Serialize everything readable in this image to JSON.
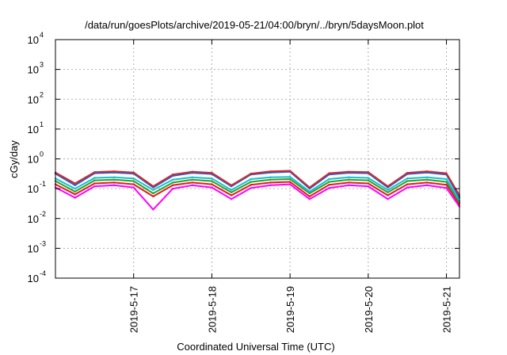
{
  "chart_data": {
    "type": "line",
    "title": "/data/run/goesPlots/archive/2019-05-21/04:00/bryn/../bryn/5daysMoon.plot",
    "xlabel": "Coordinated Universal Time (UTC)",
    "ylabel": "cGy/day",
    "yscale": "log",
    "ylim": [
      0.0001,
      10000
    ],
    "xlim": [
      "2019-05-16 00:00",
      "2019-05-21 04:00"
    ],
    "grid": true,
    "y_ticks": [
      {
        "base": "10",
        "exp": "-4"
      },
      {
        "base": "10",
        "exp": "-3"
      },
      {
        "base": "10",
        "exp": "-2"
      },
      {
        "base": "10",
        "exp": "-1"
      },
      {
        "base": "10",
        "exp": "0"
      },
      {
        "base": "10",
        "exp": "1"
      },
      {
        "base": "10",
        "exp": "2"
      },
      {
        "base": "10",
        "exp": "3"
      },
      {
        "base": "10",
        "exp": "4"
      }
    ],
    "x_ticks": [
      {
        "label": "2019-5-17",
        "t": "2019-05-17 00:00"
      },
      {
        "label": "2019-5-18",
        "t": "2019-05-18 00:00"
      },
      {
        "label": "2019-5-19",
        "t": "2019-05-19 00:00"
      },
      {
        "label": "2019-5-20",
        "t": "2019-05-20 00:00"
      },
      {
        "label": "2019-5-21",
        "t": "2019-05-21 00:00"
      }
    ],
    "series": [
      {
        "color": "#d62728",
        "x": [
          "2019-05-16 00:00",
          "2019-05-16 06:00",
          "2019-05-16 12:00",
          "2019-05-16 18:00",
          "2019-05-17 00:00",
          "2019-05-17 06:00",
          "2019-05-17 12:00",
          "2019-05-17 18:00",
          "2019-05-18 00:00",
          "2019-05-18 06:00",
          "2019-05-18 12:00",
          "2019-05-18 18:00",
          "2019-05-19 00:00",
          "2019-05-19 06:00",
          "2019-05-19 12:00",
          "2019-05-19 18:00",
          "2019-05-20 00:00",
          "2019-05-20 06:00",
          "2019-05-20 12:00",
          "2019-05-20 18:00",
          "2019-05-21 00:00",
          "2019-05-21 04:00"
        ],
        "values": [
          0.35,
          0.15,
          0.36,
          0.38,
          0.35,
          0.12,
          0.3,
          0.37,
          0.34,
          0.13,
          0.32,
          0.38,
          0.4,
          0.11,
          0.33,
          0.37,
          0.36,
          0.12,
          0.34,
          0.38,
          0.33,
          0.06
        ]
      },
      {
        "color": "#1f5fd6",
        "x": [
          "2019-05-16 00:00",
          "2019-05-16 06:00",
          "2019-05-16 12:00",
          "2019-05-16 18:00",
          "2019-05-17 00:00",
          "2019-05-17 06:00",
          "2019-05-17 12:00",
          "2019-05-17 18:00",
          "2019-05-18 00:00",
          "2019-05-18 06:00",
          "2019-05-18 12:00",
          "2019-05-18 18:00",
          "2019-05-19 00:00",
          "2019-05-19 06:00",
          "2019-05-19 12:00",
          "2019-05-19 18:00",
          "2019-05-20 00:00",
          "2019-05-20 06:00",
          "2019-05-20 12:00",
          "2019-05-20 18:00",
          "2019-05-21 00:00",
          "2019-05-21 04:00"
        ],
        "values": [
          0.32,
          0.13,
          0.33,
          0.35,
          0.32,
          0.11,
          0.27,
          0.34,
          0.31,
          0.12,
          0.3,
          0.35,
          0.37,
          0.1,
          0.3,
          0.34,
          0.33,
          0.11,
          0.31,
          0.35,
          0.3,
          0.05
        ]
      },
      {
        "color": "#17becf",
        "x": [
          "2019-05-16 00:00",
          "2019-05-16 06:00",
          "2019-05-16 12:00",
          "2019-05-16 18:00",
          "2019-05-17 00:00",
          "2019-05-17 06:00",
          "2019-05-17 12:00",
          "2019-05-17 18:00",
          "2019-05-18 00:00",
          "2019-05-18 06:00",
          "2019-05-18 12:00",
          "2019-05-18 18:00",
          "2019-05-19 00:00",
          "2019-05-19 06:00",
          "2019-05-19 12:00",
          "2019-05-19 18:00",
          "2019-05-20 00:00",
          "2019-05-20 06:00",
          "2019-05-20 12:00",
          "2019-05-20 18:00",
          "2019-05-21 00:00",
          "2019-05-21 04:00"
        ],
        "values": [
          0.22,
          0.1,
          0.23,
          0.24,
          0.22,
          0.09,
          0.2,
          0.24,
          0.22,
          0.09,
          0.21,
          0.24,
          0.25,
          0.08,
          0.21,
          0.24,
          0.23,
          0.09,
          0.22,
          0.24,
          0.21,
          0.04
        ]
      },
      {
        "color": "#2ca02c",
        "x": [
          "2019-05-16 00:00",
          "2019-05-16 06:00",
          "2019-05-16 12:00",
          "2019-05-16 18:00",
          "2019-05-17 00:00",
          "2019-05-17 06:00",
          "2019-05-17 12:00",
          "2019-05-17 18:00",
          "2019-05-18 00:00",
          "2019-05-18 06:00",
          "2019-05-18 12:00",
          "2019-05-18 18:00",
          "2019-05-19 00:00",
          "2019-05-19 06:00",
          "2019-05-19 12:00",
          "2019-05-19 18:00",
          "2019-05-20 00:00",
          "2019-05-20 06:00",
          "2019-05-20 12:00",
          "2019-05-20 18:00",
          "2019-05-21 00:00",
          "2019-05-21 04:00"
        ],
        "values": [
          0.18,
          0.08,
          0.19,
          0.2,
          0.18,
          0.07,
          0.16,
          0.2,
          0.18,
          0.075,
          0.17,
          0.2,
          0.21,
          0.07,
          0.17,
          0.2,
          0.19,
          0.075,
          0.18,
          0.2,
          0.17,
          0.035
        ]
      },
      {
        "color": "#e31a1c",
        "x": [
          "2019-05-16 00:00",
          "2019-05-16 06:00",
          "2019-05-16 12:00",
          "2019-05-16 18:00",
          "2019-05-17 00:00",
          "2019-05-17 06:00",
          "2019-05-17 12:00",
          "2019-05-17 18:00",
          "2019-05-18 00:00",
          "2019-05-18 06:00",
          "2019-05-18 12:00",
          "2019-05-18 18:00",
          "2019-05-19 00:00",
          "2019-05-19 06:00",
          "2019-05-19 12:00",
          "2019-05-19 18:00",
          "2019-05-20 00:00",
          "2019-05-20 06:00",
          "2019-05-20 12:00",
          "2019-05-20 18:00",
          "2019-05-21 00:00",
          "2019-05-21 04:00"
        ],
        "values": [
          0.14,
          0.065,
          0.15,
          0.16,
          0.14,
          0.055,
          0.13,
          0.16,
          0.14,
          0.06,
          0.135,
          0.16,
          0.17,
          0.055,
          0.135,
          0.16,
          0.15,
          0.06,
          0.14,
          0.16,
          0.135,
          0.03
        ]
      },
      {
        "color": "#ff00ff",
        "x": [
          "2019-05-16 00:00",
          "2019-05-16 06:00",
          "2019-05-16 12:00",
          "2019-05-16 18:00",
          "2019-05-17 00:00",
          "2019-05-17 06:00",
          "2019-05-17 12:00",
          "2019-05-17 18:00",
          "2019-05-18 00:00",
          "2019-05-18 06:00",
          "2019-05-18 12:00",
          "2019-05-18 18:00",
          "2019-05-19 00:00",
          "2019-05-19 06:00",
          "2019-05-19 12:00",
          "2019-05-19 18:00",
          "2019-05-20 00:00",
          "2019-05-20 06:00",
          "2019-05-20 12:00",
          "2019-05-20 18:00",
          "2019-05-21 00:00",
          "2019-05-21 04:00"
        ],
        "values": [
          0.11,
          0.05,
          0.12,
          0.13,
          0.11,
          0.02,
          0.1,
          0.13,
          0.11,
          0.045,
          0.105,
          0.13,
          0.14,
          0.045,
          0.105,
          0.13,
          0.12,
          0.045,
          0.11,
          0.13,
          0.105,
          0.025
        ]
      }
    ]
  }
}
